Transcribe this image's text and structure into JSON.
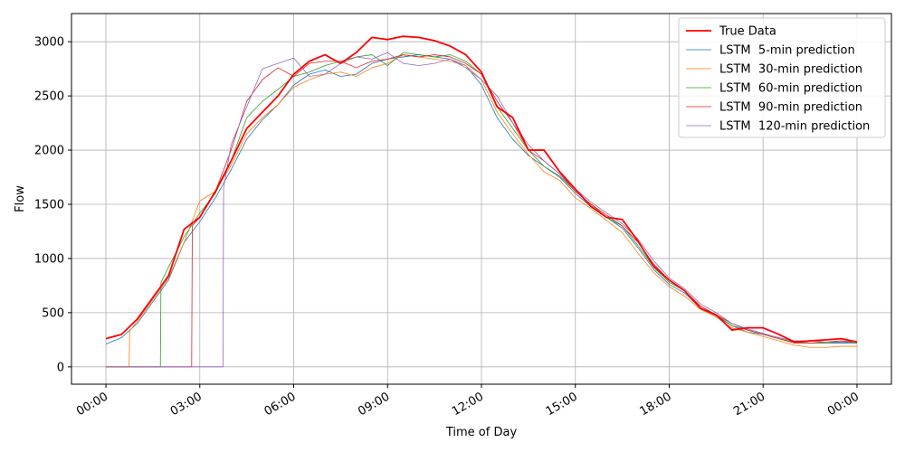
{
  "chart_data": {
    "type": "line",
    "xlabel": "Time of Day",
    "ylabel": "Flow",
    "x_ticks": [
      "00:00",
      "03:00",
      "06:00",
      "09:00",
      "12:00",
      "15:00",
      "18:00",
      "21:00",
      "00:00"
    ],
    "x_tick_hours": [
      0,
      3,
      6,
      9,
      12,
      15,
      18,
      21,
      24
    ],
    "xlim_hours": [
      -1.1,
      25.1
    ],
    "y_ticks": [
      "0",
      "500",
      "1000",
      "1500",
      "2000",
      "2500",
      "3000"
    ],
    "y_tick_values": [
      0,
      500,
      1000,
      1500,
      2000,
      2500,
      3000
    ],
    "ylim": [
      -160,
      3260
    ],
    "grid": true,
    "legend_position": "top-right",
    "series": [
      {
        "name": "True Data",
        "color": "#ff0000",
        "x_hours": [
          0,
          0.5,
          1,
          1.5,
          2,
          2.5,
          3,
          3.5,
          4,
          4.5,
          5,
          5.5,
          6,
          6.5,
          7,
          7.5,
          8,
          8.5,
          9,
          9.5,
          10,
          10.5,
          11,
          11.5,
          12,
          12.5,
          13,
          13.5,
          14,
          14.5,
          15,
          15.5,
          16,
          16.5,
          17,
          17.5,
          18,
          18.5,
          19,
          19.5,
          20,
          20.5,
          21,
          21.5,
          22,
          22.5,
          23,
          23.5,
          24
        ],
        "y": [
          260,
          300,
          440,
          640,
          840,
          1270,
          1380,
          1620,
          1900,
          2200,
          2350,
          2500,
          2700,
          2820,
          2880,
          2800,
          2900,
          3040,
          3020,
          3050,
          3040,
          3010,
          2960,
          2880,
          2720,
          2400,
          2300,
          2000,
          2000,
          1800,
          1640,
          1480,
          1380,
          1360,
          1160,
          930,
          800,
          700,
          540,
          480,
          340,
          360,
          360,
          300,
          230,
          240,
          250,
          260,
          230
        ]
      },
      {
        "name": "LSTM  5-min prediction",
        "color": "#1f77b4",
        "x_hours": [
          0,
          0.5,
          1,
          1.5,
          2,
          2.5,
          3,
          3.5,
          4,
          4.5,
          5,
          5.5,
          6,
          6.5,
          7,
          7.5,
          8,
          8.5,
          9,
          9.5,
          10,
          10.5,
          11,
          11.5,
          12,
          12.5,
          13,
          13.5,
          14,
          14.5,
          15,
          15.5,
          16,
          16.5,
          17,
          17.5,
          18,
          18.5,
          19,
          19.5,
          20,
          20.5,
          21,
          21.5,
          22,
          22.5,
          23,
          23.5,
          24
        ],
        "y": [
          210,
          270,
          400,
          600,
          800,
          1150,
          1340,
          1560,
          1820,
          2100,
          2280,
          2420,
          2600,
          2700,
          2740,
          2680,
          2700,
          2800,
          2840,
          2860,
          2880,
          2860,
          2840,
          2780,
          2600,
          2300,
          2100,
          1950,
          1850,
          1750,
          1600,
          1480,
          1380,
          1280,
          1100,
          900,
          760,
          680,
          540,
          470,
          380,
          320,
          300,
          260,
          230,
          220,
          220,
          220,
          220
        ]
      },
      {
        "name": "LSTM  30-min prediction",
        "color": "#ff7f0e",
        "x_hours": [
          0,
          0.5,
          0.74,
          0.76,
          1,
          1.5,
          2,
          2.5,
          3,
          3.5,
          4,
          4.5,
          5,
          5.5,
          6,
          6.5,
          7,
          7.5,
          8,
          8.5,
          9,
          9.5,
          10,
          10.5,
          11,
          11.5,
          12,
          12.5,
          13,
          13.5,
          14,
          14.5,
          15,
          15.5,
          16,
          16.5,
          17,
          17.5,
          18,
          18.5,
          19,
          19.5,
          20,
          20.5,
          21,
          21.5,
          22,
          22.5,
          23,
          23.5,
          24
        ],
        "y": [
          0,
          0,
          0,
          330,
          420,
          620,
          820,
          1150,
          1530,
          1620,
          1860,
          2150,
          2300,
          2420,
          2580,
          2650,
          2700,
          2720,
          2680,
          2760,
          2800,
          2880,
          2860,
          2840,
          2820,
          2780,
          2650,
          2350,
          2150,
          1960,
          1800,
          1720,
          1560,
          1460,
          1350,
          1240,
          1050,
          870,
          740,
          650,
          530,
          460,
          360,
          320,
          280,
          240,
          200,
          180,
          180,
          190,
          190
        ]
      },
      {
        "name": "LSTM  60-min prediction",
        "color": "#2ca02c",
        "x_hours": [
          0,
          1,
          1.74,
          1.76,
          2,
          2.5,
          3,
          3.5,
          4,
          4.5,
          5,
          5.5,
          6,
          6.5,
          7,
          7.5,
          8,
          8.5,
          9,
          9.5,
          10,
          10.5,
          11,
          11.5,
          12,
          12.5,
          13,
          13.5,
          14,
          14.5,
          15,
          15.5,
          16,
          16.5,
          17,
          17.5,
          18,
          18.5,
          19,
          19.5,
          20,
          20.5,
          21,
          21.5,
          22,
          22.5,
          23,
          23.5,
          24
        ],
        "y": [
          0,
          0,
          0,
          780,
          920,
          1200,
          1420,
          1600,
          1900,
          2300,
          2450,
          2560,
          2680,
          2720,
          2780,
          2820,
          2860,
          2880,
          2780,
          2900,
          2880,
          2860,
          2880,
          2820,
          2700,
          2400,
          2200,
          2000,
          1850,
          1760,
          1620,
          1500,
          1380,
          1300,
          1120,
          920,
          780,
          700,
          560,
          480,
          380,
          340,
          300,
          260,
          230,
          220,
          220,
          230,
          220
        ]
      },
      {
        "name": "LSTM  90-min prediction",
        "color": "#d62728",
        "x_hours": [
          0,
          1,
          2,
          2.74,
          2.76,
          3,
          3.5,
          4,
          4.5,
          5,
          5.5,
          6,
          6.5,
          7,
          7.5,
          8,
          8.5,
          9,
          9.5,
          10,
          10.5,
          11,
          11.5,
          12,
          12.5,
          13,
          13.5,
          14,
          14.5,
          15,
          15.5,
          16,
          16.5,
          17,
          17.5,
          18,
          18.5,
          19,
          19.5,
          20,
          20.5,
          21,
          21.5,
          22,
          22.5,
          23,
          23.5,
          24
        ],
        "y": [
          0,
          0,
          0,
          0,
          1300,
          1380,
          1620,
          2000,
          2450,
          2650,
          2760,
          2680,
          2800,
          2820,
          2820,
          2760,
          2820,
          2840,
          2880,
          2860,
          2880,
          2860,
          2800,
          2700,
          2450,
          2250,
          2000,
          1900,
          1780,
          1620,
          1500,
          1400,
          1300,
          1150,
          950,
          800,
          700,
          560,
          480,
          400,
          340,
          300,
          260,
          220,
          220,
          230,
          240,
          230
        ]
      },
      {
        "name": "LSTM  120-min prediction",
        "color": "#9467bd",
        "x_hours": [
          0,
          1,
          2,
          3,
          3.74,
          3.76,
          4,
          4.5,
          5,
          5.5,
          6,
          6.5,
          7,
          7.5,
          8,
          8.5,
          9,
          9.5,
          10,
          10.5,
          11,
          11.5,
          12,
          12.5,
          13,
          13.5,
          14,
          14.5,
          15,
          15.5,
          16,
          16.5,
          17,
          17.5,
          18,
          18.5,
          19,
          19.5,
          20,
          20.5,
          21,
          21.5,
          22,
          22.5,
          23,
          23.5,
          24
        ],
        "y": [
          0,
          0,
          0,
          0,
          0,
          1650,
          2050,
          2400,
          2750,
          2800,
          2850,
          2680,
          2700,
          2800,
          2860,
          2840,
          2900,
          2800,
          2780,
          2800,
          2840,
          2760,
          2650,
          2500,
          2250,
          2050,
          1900,
          1780,
          1640,
          1520,
          1420,
          1320,
          1180,
          980,
          820,
          720,
          580,
          500,
          400,
          350,
          310,
          270,
          240,
          240,
          230,
          230,
          230
        ]
      }
    ]
  }
}
